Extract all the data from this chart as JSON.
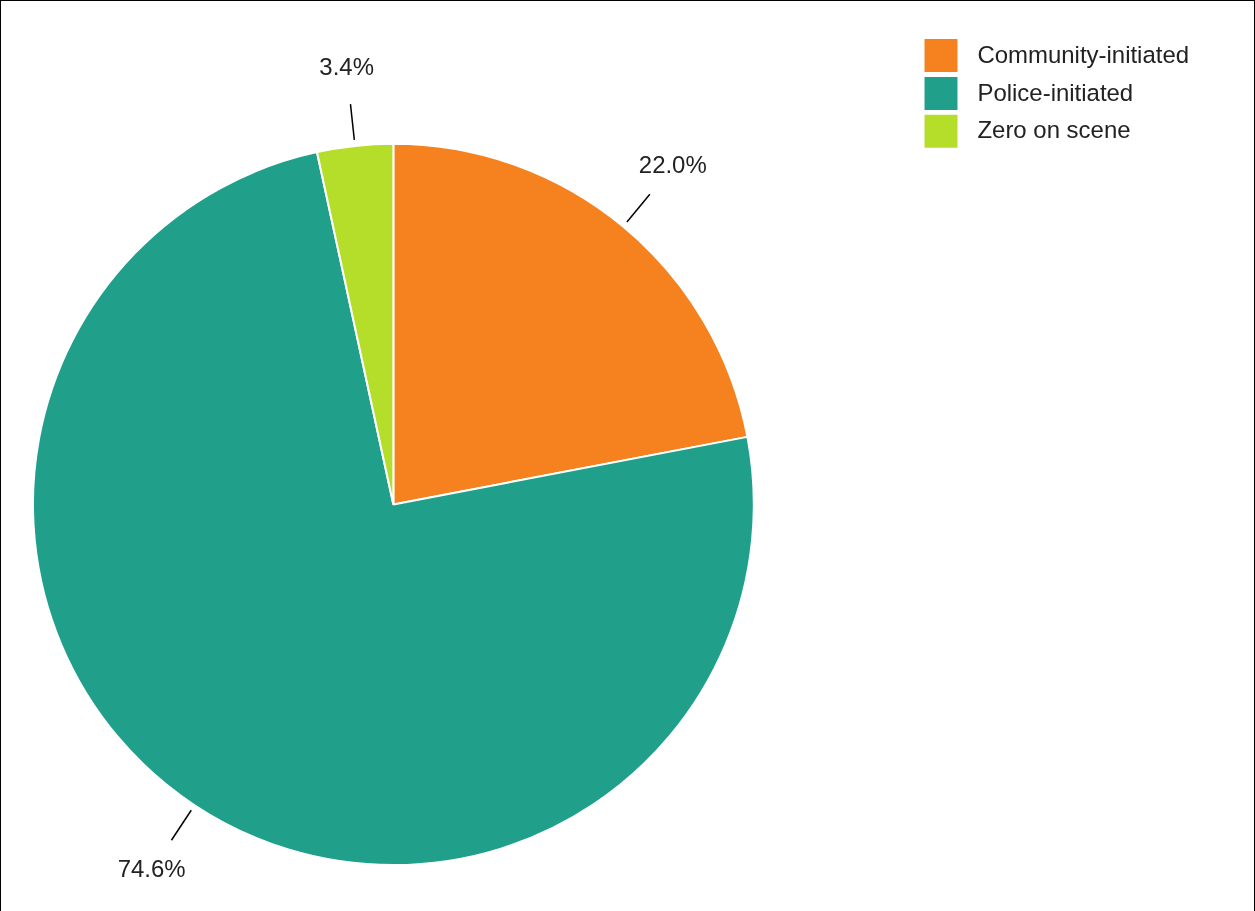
{
  "chart_data": {
    "type": "pie",
    "categories": [
      "Community-initiated",
      "Police-initiated",
      "Zero on scene"
    ],
    "values": [
      22.0,
      74.6,
      3.4
    ],
    "colors": [
      "#f5821f",
      "#20a08a",
      "#b5de2b"
    ],
    "value_labels": [
      "22.0%",
      "74.6%",
      "3.4%"
    ],
    "legend": "top right"
  }
}
